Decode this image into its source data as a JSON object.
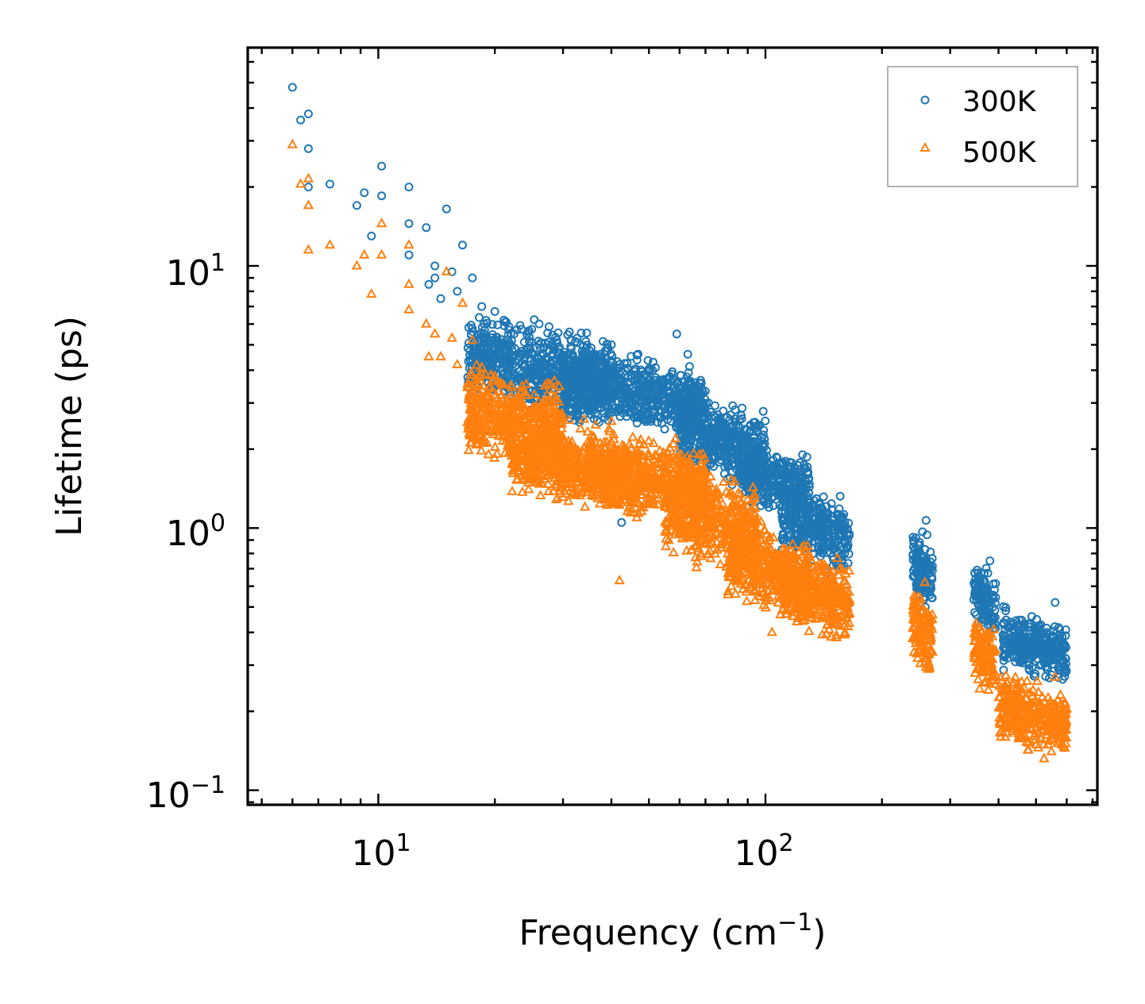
{
  "chart_data": {
    "type": "scatter",
    "xscale": "log",
    "yscale": "log",
    "xlim": [
      4.6,
      720
    ],
    "ylim": [
      0.088,
      68
    ],
    "xlabel": "Frequency (cm",
    "xlabel_sup": "−1",
    "xlabel_end": ")",
    "ylabel": "Lifetime (ps)",
    "x_ticks": [
      {
        "value": 10,
        "base": "10",
        "exp": "1"
      },
      {
        "value": 100,
        "base": "10",
        "exp": "2"
      }
    ],
    "y_ticks": [
      {
        "value": 0.1,
        "base": "10",
        "exp": "−1"
      },
      {
        "value": 1,
        "base": "10",
        "exp": "0"
      },
      {
        "value": 10,
        "base": "10",
        "exp": "1"
      }
    ],
    "legend_position": "top-right",
    "series": [
      {
        "name": "300K",
        "marker": "circle",
        "color": "#1f77b4",
        "points": [
          [
            6.0,
            48
          ],
          [
            6.3,
            36
          ],
          [
            6.6,
            38
          ],
          [
            6.6,
            28
          ],
          [
            6.6,
            20
          ],
          [
            7.5,
            20.5
          ],
          [
            8.8,
            17
          ],
          [
            9.2,
            19
          ],
          [
            9.6,
            13
          ],
          [
            10.2,
            24
          ],
          [
            10.2,
            18.5
          ],
          [
            12.0,
            20
          ],
          [
            12.0,
            14.5
          ],
          [
            12.0,
            11
          ],
          [
            13.3,
            14
          ],
          [
            15.0,
            16.5
          ],
          [
            16.5,
            12
          ],
          [
            14.0,
            10
          ],
          [
            14.0,
            9
          ],
          [
            15.5,
            9.5
          ],
          [
            17.5,
            9
          ],
          [
            13.5,
            8.5
          ],
          [
            14.5,
            7.5
          ],
          [
            16.0,
            8
          ],
          [
            18.5,
            7
          ],
          [
            20.0,
            6.7
          ],
          [
            22.0,
            5.5
          ],
          [
            19.0,
            6.2
          ],
          [
            26.0,
            5
          ],
          [
            40.0,
            5
          ],
          [
            59.0,
            5.5
          ],
          [
            63.0,
            4.6
          ],
          [
            36.0,
            4.5
          ],
          [
            30.0,
            4.3
          ],
          [
            110.0,
            1.6
          ],
          [
            122.0,
            1.3
          ],
          [
            155.0,
            1.05
          ],
          [
            42.5,
            1.05
          ],
          [
            260.0,
            1.07
          ],
          [
            380.0,
            0.75
          ],
          [
            560.0,
            0.52
          ]
        ],
        "clusters": [
          {
            "x": [
              17,
              40
            ],
            "y": [
              2.2,
              6.0
            ]
          },
          {
            "x": [
              30,
              70
            ],
            "y": [
              2.0,
              4.5
            ]
          },
          {
            "x": [
              60,
              100
            ],
            "y": [
              1.3,
              3.0
            ]
          },
          {
            "x": [
              85,
              130
            ],
            "y": [
              1.0,
              2.0
            ]
          },
          {
            "x": [
              110,
              165
            ],
            "y": [
              0.6,
              1.4
            ]
          },
          {
            "x": [
              240,
              270
            ],
            "y": [
              0.42,
              0.95
            ]
          },
          {
            "x": [
              345,
              395
            ],
            "y": [
              0.32,
              0.72
            ]
          },
          {
            "x": [
              410,
              600
            ],
            "y": [
              0.24,
              0.46
            ]
          }
        ]
      },
      {
        "name": "500K",
        "marker": "triangle",
        "color": "#ff7f0e",
        "points": [
          [
            6.0,
            29
          ],
          [
            6.3,
            20.5
          ],
          [
            6.6,
            21.5
          ],
          [
            6.6,
            17
          ],
          [
            6.6,
            11.5
          ],
          [
            7.5,
            12
          ],
          [
            8.8,
            10
          ],
          [
            9.2,
            11
          ],
          [
            9.6,
            7.8
          ],
          [
            10.2,
            14.5
          ],
          [
            10.2,
            11
          ],
          [
            12.0,
            12
          ],
          [
            12.0,
            8.5
          ],
          [
            12.0,
            6.8
          ],
          [
            13.3,
            6
          ],
          [
            15.0,
            9.5
          ],
          [
            16.5,
            7.2
          ],
          [
            14.0,
            5.5
          ],
          [
            15.5,
            5.3
          ],
          [
            17.5,
            5.2
          ],
          [
            13.5,
            4.5
          ],
          [
            14.5,
            4.5
          ],
          [
            16.0,
            4.2
          ],
          [
            18.5,
            4.1
          ],
          [
            20.0,
            3.8
          ],
          [
            22.0,
            3.5
          ],
          [
            24.0,
            3.2
          ],
          [
            40.0,
            2.55
          ],
          [
            34.0,
            2.6
          ],
          [
            42.0,
            0.63
          ],
          [
            104.0,
            0.4
          ],
          [
            150.0,
            0.63
          ],
          [
            258.0,
            0.62
          ],
          [
            380.0,
            0.32
          ],
          [
            560.0,
            0.27
          ]
        ],
        "clusters": [
          {
            "x": [
              17,
              30
            ],
            "y": [
              1.4,
              3.8
            ]
          },
          {
            "x": [
              22,
              45
            ],
            "y": [
              1.05,
              2.4
            ]
          },
          {
            "x": [
              35,
              70
            ],
            "y": [
              0.95,
              2.2
            ]
          },
          {
            "x": [
              55,
              95
            ],
            "y": [
              0.6,
              1.6
            ]
          },
          {
            "x": [
              80,
              130
            ],
            "y": [
              0.4,
              1.0
            ]
          },
          {
            "x": [
              110,
              165
            ],
            "y": [
              0.33,
              0.8
            ]
          },
          {
            "x": [
              240,
              270
            ],
            "y": [
              0.25,
              0.55
            ]
          },
          {
            "x": [
              345,
              395
            ],
            "y": [
              0.2,
              0.45
            ]
          },
          {
            "x": [
              400,
              600
            ],
            "y": [
              0.12,
              0.26
            ]
          }
        ]
      }
    ]
  }
}
